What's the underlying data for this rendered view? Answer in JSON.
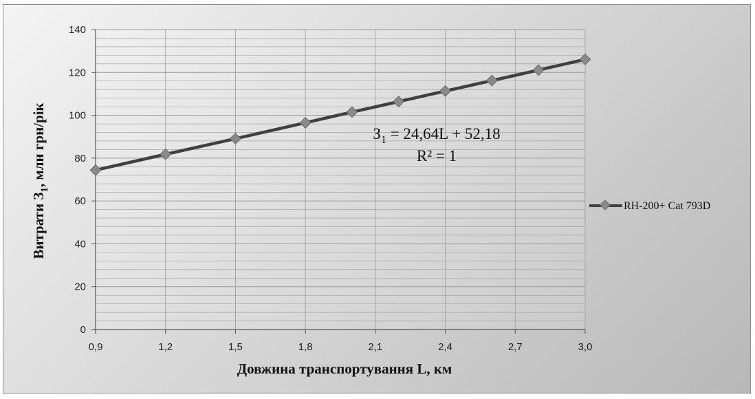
{
  "chart_data": {
    "type": "line",
    "x": [
      0.9,
      1.2,
      1.5,
      1.8,
      2.0,
      2.2,
      2.4,
      2.6,
      2.8,
      3.0
    ],
    "series": [
      {
        "name": "RH-200+ Cat 793D",
        "values": [
          74.4,
          81.8,
          89.1,
          96.5,
          101.5,
          106.4,
          111.3,
          116.2,
          121.1,
          126.1
        ]
      }
    ],
    "x_ticks": [
      "0,9",
      "1,2",
      "1,5",
      "1,8",
      "2,1",
      "2,4",
      "2,7",
      "3,0"
    ],
    "x_tick_values": [
      0.9,
      1.2,
      1.5,
      1.8,
      2.1,
      2.4,
      2.7,
      3.0
    ],
    "y_ticks": [
      "0",
      "20",
      "40",
      "60",
      "80",
      "100",
      "120",
      "140"
    ],
    "y_tick_values": [
      0,
      20,
      40,
      60,
      80,
      100,
      120,
      140
    ],
    "xlim": [
      0.9,
      3.0
    ],
    "ylim": [
      0,
      140
    ],
    "xlabel": "Довжина транспортування L, км",
    "ylabel_main": "Витрати З",
    "ylabel_sub": "1",
    "ylabel_tail": ", млн грн/рік",
    "annotation_eq_main": "З",
    "annotation_eq_sub": "1",
    "annotation_eq_tail": " = 24,64L + 52,18",
    "annotation_r2": "R² = 1",
    "grid": true,
    "legend_position": "right",
    "colors": {
      "line": "#404040",
      "marker": "#8a8a8a",
      "grid": "#9a9a9a"
    }
  }
}
